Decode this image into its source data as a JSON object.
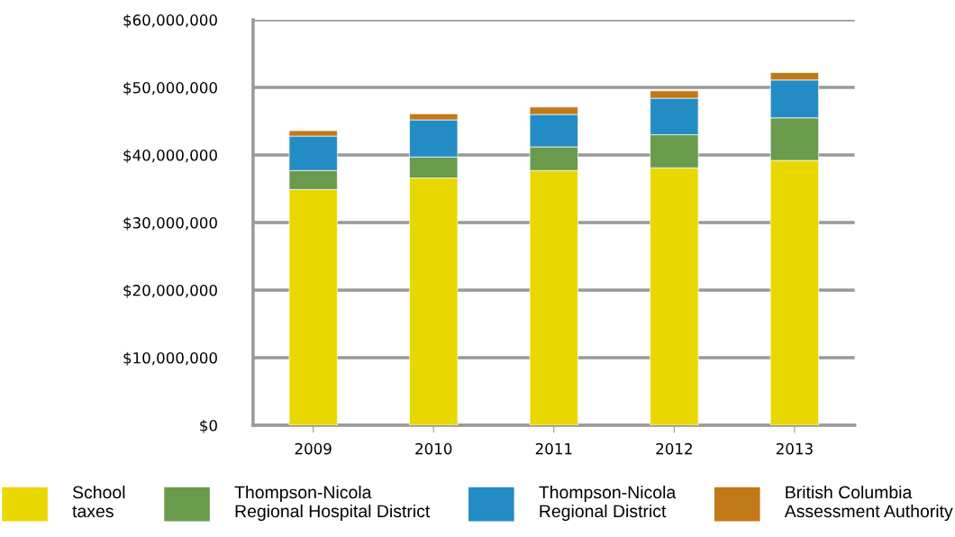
{
  "chart_data": {
    "type": "bar",
    "stacked": true,
    "categories": [
      "2009",
      "2010",
      "2011",
      "2012",
      "2013"
    ],
    "series": [
      {
        "name": "School\ntaxes",
        "color": "#e8d800",
        "values": [
          34900000,
          36600000,
          37700000,
          38100000,
          39200000
        ]
      },
      {
        "name": "Thompson-Nicola\nRegional Hospital District",
        "color": "#6a9a4c",
        "values": [
          2800000,
          3100000,
          3500000,
          4900000,
          6300000
        ]
      },
      {
        "name": "Thompson-Nicola\nRegional District",
        "color": "#248cc4",
        "values": [
          5100000,
          5500000,
          4800000,
          5400000,
          5600000
        ]
      },
      {
        "name": "British Columbia\nAssessment Authority",
        "color": "#c07818",
        "values": [
          800000,
          900000,
          1100000,
          1100000,
          1100000
        ]
      }
    ],
    "ylim": [
      0,
      60000000
    ],
    "yticks": [
      {
        "value": 0,
        "label": "$0"
      },
      {
        "value": 10000000,
        "label": "$10,000,000"
      },
      {
        "value": 20000000,
        "label": "$20,000,000"
      },
      {
        "value": 30000000,
        "label": "$30,000,000"
      },
      {
        "value": 40000000,
        "label": "$40,000,000"
      },
      {
        "value": 50000000,
        "label": "$50,000,000"
      },
      {
        "value": 60000000,
        "label": "$60,000,000"
      }
    ],
    "grid": "y",
    "legend": "bottom"
  }
}
